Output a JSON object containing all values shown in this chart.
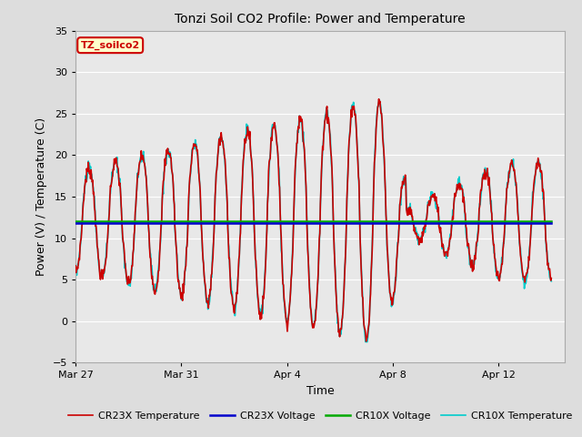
{
  "title": "Tonzi Soil CO2 Profile: Power and Temperature",
  "xlabel": "Time",
  "ylabel": "Power (V) / Temperature (C)",
  "ylim": [
    -5,
    35
  ],
  "yticks": [
    -5,
    0,
    5,
    10,
    15,
    20,
    25,
    30,
    35
  ],
  "annotation_text": "TZ_soilco2",
  "annotation_bg": "#FFFFCC",
  "annotation_border": "#CC0000",
  "cr23x_voltage_value": 11.85,
  "cr10x_voltage_value": 12.05,
  "colors": {
    "cr23x_temp": "#CC0000",
    "cr23x_voltage": "#0000CC",
    "cr10x_voltage": "#00AA00",
    "cr10x_temp": "#00CCCC"
  },
  "line_widths": {
    "cr23x_temp": 1.2,
    "cr23x_voltage": 1.8,
    "cr10x_voltage": 1.8,
    "cr10x_temp": 1.2
  },
  "background_color": "#E8E8E8",
  "fig_bg": "#DDDDDD",
  "xtick_labels": [
    "Mar 27",
    "Mar 31",
    "Apr 4",
    "Apr 8",
    "Apr 12"
  ],
  "xtick_days_offset": [
    0,
    4,
    8,
    12,
    16
  ],
  "xlim": [
    0,
    18.5
  ]
}
